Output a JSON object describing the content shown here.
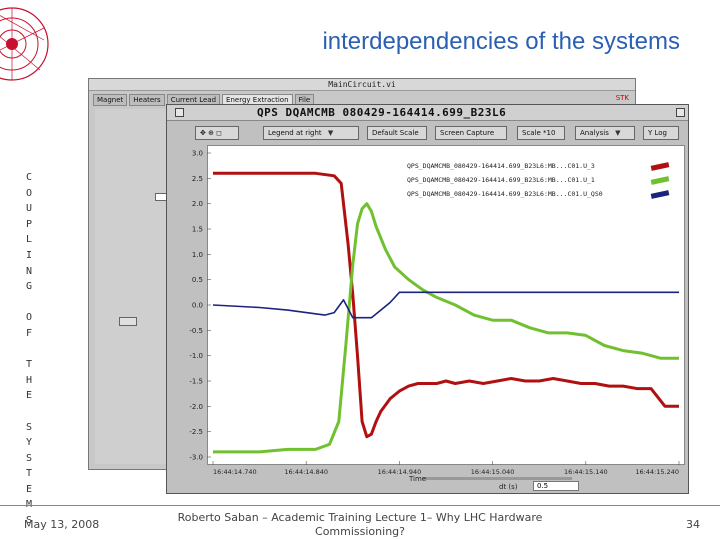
{
  "slide": {
    "title": "interdependencies of the systems",
    "vertical_letters": [
      "C",
      "O",
      "U",
      "P",
      "L",
      "I",
      "N",
      "G",
      " ",
      "O",
      "F",
      " ",
      "T",
      "H",
      "E",
      " ",
      "S",
      "Y",
      "S",
      "T",
      "E",
      "M",
      "S"
    ],
    "footer_date": "May 13, 2008",
    "footer_center": "Roberto Saban – Academic Training Lecture 1– Why LHC Hardware Commissioning?",
    "page_number": "34"
  },
  "back_window": {
    "title": "MainCircuit.vi",
    "tabs": [
      "Magnet",
      "Heaters",
      "Current Lead",
      "Energy Extraction",
      "File"
    ],
    "active_tab_index": 3,
    "badge": "STK"
  },
  "front_window": {
    "title": "QPS  DQAMCMB  080429-164414.699_B23L6",
    "toolbar": {
      "legend_label": "Legend at right",
      "default_scale_label": "Default Scale",
      "screen_capture_label": "Screen Capture",
      "scale_label": "Scale *10",
      "analysis_label": "Analysis",
      "ylog_label": "Y Log"
    },
    "time_axis_label": "Time",
    "dt_label": "dt (s)",
    "dt_value": "0.5"
  },
  "chart_data": {
    "type": "line",
    "y_ticks": [
      "3.0",
      "2.5",
      "2.0",
      "1.5",
      "1.0",
      "0.5",
      "0.0",
      "-0.5",
      "-1.0",
      "-1.5",
      "-2.0",
      "-2.5",
      "-3.0"
    ],
    "ylim": [
      -3.0,
      3.0
    ],
    "x_ticks": [
      "16:44:14.740",
      "16:44:14.840",
      "16:44:14.940",
      "16:44:15.040",
      "16:44:15.140",
      "16:44:15.240"
    ],
    "xlim": [
      0,
      100
    ],
    "grid": false,
    "legend_placement": "top-right",
    "series": [
      {
        "name": "QPS_DQAMCMB_080429-164414.699_B23L6:MB...C01.U_3",
        "color": "#b01010",
        "x": [
          0,
          10,
          16,
          22,
          26,
          27.5,
          29,
          30,
          31,
          32,
          33,
          34,
          35,
          36,
          38,
          40,
          42,
          44,
          46,
          48,
          50,
          52,
          55,
          58,
          61,
          64,
          67,
          70,
          73,
          76,
          79,
          82,
          85,
          88,
          91,
          94,
          97,
          100
        ],
        "values": [
          2.6,
          2.6,
          2.6,
          2.6,
          2.55,
          2.4,
          1.2,
          0.2,
          -1.0,
          -2.3,
          -2.6,
          -2.55,
          -2.3,
          -2.1,
          -1.85,
          -1.7,
          -1.6,
          -1.55,
          -1.55,
          -1.55,
          -1.5,
          -1.55,
          -1.5,
          -1.55,
          -1.5,
          -1.45,
          -1.5,
          -1.5,
          -1.45,
          -1.5,
          -1.55,
          -1.55,
          -1.6,
          -1.6,
          -1.65,
          -1.65,
          -2.0,
          -2.0
        ]
      },
      {
        "name": "QPS_DQAMCMB_080429-164414.699_B23L6:MB...C01.U_1",
        "color": "#70c030",
        "x": [
          0,
          10,
          16,
          22,
          25,
          27,
          28.5,
          30,
          31,
          32,
          33,
          34,
          35,
          37,
          39,
          42,
          45,
          48,
          52,
          56,
          60,
          64,
          68,
          72,
          76,
          80,
          84,
          88,
          92,
          96,
          100
        ],
        "values": [
          -2.9,
          -2.9,
          -2.85,
          -2.85,
          -2.75,
          -2.3,
          -0.8,
          0.8,
          1.6,
          1.9,
          2.0,
          1.85,
          1.55,
          1.1,
          0.75,
          0.5,
          0.3,
          0.15,
          0.0,
          -0.2,
          -0.3,
          -0.3,
          -0.45,
          -0.55,
          -0.55,
          -0.6,
          -0.8,
          -0.9,
          -0.95,
          -1.05,
          -1.05
        ]
      },
      {
        "name": "QPS_DQAMCMB_080429-164414.699_B23L6:MB...C01.U_QS0",
        "color": "#1a237e",
        "x": [
          0,
          10,
          16,
          20,
          24,
          26,
          28,
          30,
          32,
          34,
          36,
          38,
          40,
          100
        ],
        "values": [
          0.0,
          -0.05,
          -0.1,
          -0.15,
          -0.2,
          -0.15,
          0.1,
          -0.25,
          -0.25,
          -0.25,
          -0.1,
          0.05,
          0.25,
          0.25
        ]
      }
    ]
  }
}
